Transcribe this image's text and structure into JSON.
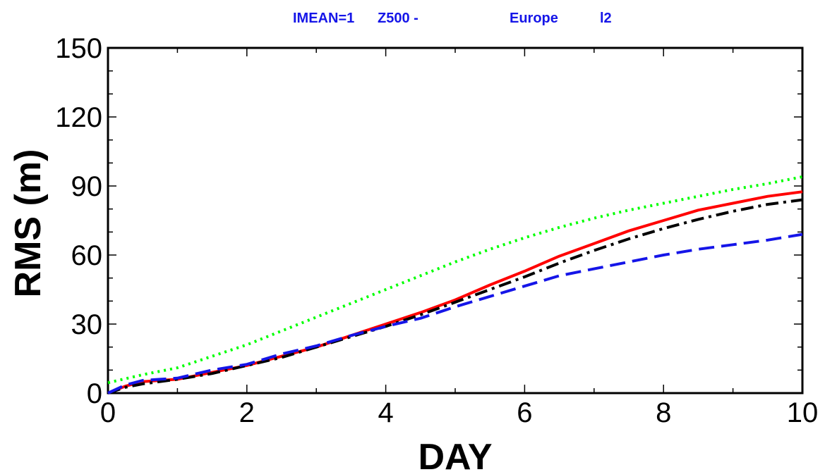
{
  "chart_data": {
    "type": "line",
    "title_parts": [
      "IMEAN=1",
      "Z500 -",
      "Europe",
      "l2"
    ],
    "title_color": "#1515e8",
    "xlabel": "DAY",
    "ylabel": "RMS (m)",
    "xlim": [
      0,
      10
    ],
    "ylim": [
      0,
      150
    ],
    "xticks": [
      0,
      2,
      4,
      6,
      8,
      10
    ],
    "yticks": [
      0,
      30,
      60,
      90,
      120,
      150
    ],
    "grid": false,
    "series": [
      {
        "color": "#00ff00",
        "dash": "dotted",
        "x": [
          0,
          0.5,
          1,
          1.5,
          2,
          2.5,
          3,
          3.5,
          4,
          4.5,
          5,
          5.5,
          6,
          6.5,
          7,
          7.5,
          8,
          8.5,
          9,
          9.5,
          10
        ],
        "y": [
          4.5,
          8,
          11,
          16,
          21,
          27,
          33,
          39,
          45,
          51,
          57,
          62.5,
          67.5,
          72,
          76,
          79.5,
          82.5,
          85.5,
          88.5,
          91,
          94
        ]
      },
      {
        "color": "#ff0000",
        "dash": "solid",
        "x": [
          0,
          0.25,
          0.5,
          0.75,
          1,
          1.5,
          2,
          2.5,
          3,
          3.5,
          4,
          4.5,
          5,
          5.5,
          6,
          6.5,
          7,
          7.5,
          8,
          8.5,
          9,
          9.5,
          10
        ],
        "y": [
          0,
          3,
          5,
          5.5,
          6,
          9,
          12,
          16,
          20,
          25,
          30,
          35,
          40.5,
          47,
          53,
          59.5,
          65,
          70.5,
          75,
          79.5,
          82.5,
          85.5,
          87.5
        ]
      },
      {
        "color": "#000000",
        "dash": "dashdot",
        "x": [
          0,
          0.25,
          0.5,
          0.75,
          1,
          1.5,
          2,
          2.5,
          3,
          3.5,
          4,
          4.5,
          5,
          5.5,
          6,
          6.5,
          7,
          7.5,
          8,
          8.5,
          9,
          9.5,
          10
        ],
        "y": [
          0,
          2.5,
          4,
          5,
          6,
          8.5,
          12,
          15.5,
          20,
          24.5,
          29,
          34,
          39.5,
          45,
          50.5,
          56.5,
          62,
          67,
          71.5,
          75.5,
          79,
          82,
          84
        ]
      },
      {
        "color": "#1515e8",
        "dash": "dashed",
        "x": [
          0,
          0.25,
          0.5,
          0.75,
          1,
          1.5,
          2,
          2.5,
          3,
          3.5,
          4,
          4.5,
          5,
          5.5,
          6,
          6.5,
          7,
          7.5,
          8,
          8.5,
          9,
          9.5,
          10
        ],
        "y": [
          0,
          3.5,
          5.5,
          6,
          6.5,
          10,
          12.5,
          17,
          20.5,
          25,
          29,
          32.5,
          37.5,
          42,
          46.5,
          51,
          54,
          57,
          60,
          62.5,
          64.5,
          66.5,
          69
        ]
      }
    ]
  }
}
